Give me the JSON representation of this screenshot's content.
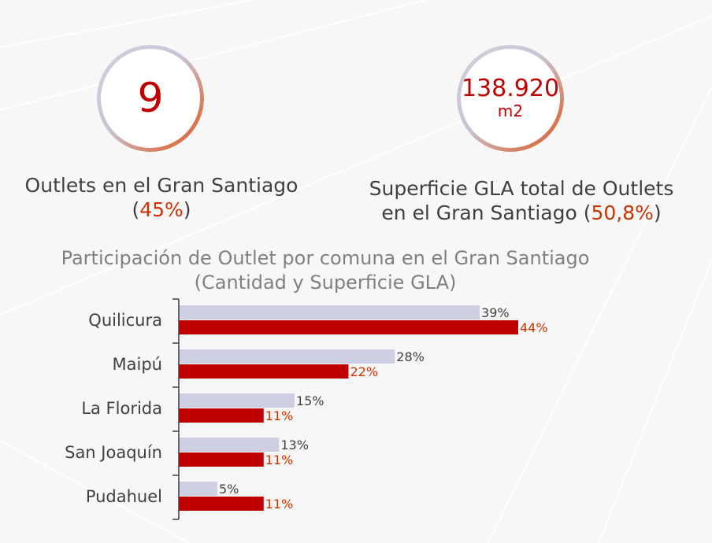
{
  "kpis": [
    {
      "value": "9",
      "caption_line1": "Outlets en el Gran Santiago",
      "caption_pre": "(",
      "caption_pct": "45%",
      "caption_post": ")"
    },
    {
      "value": "138.920",
      "unit": "m2",
      "caption_line1": "Superficie GLA total de Outlets",
      "caption_pre": "en el Gran Santiago (",
      "caption_pct": "50,8%",
      "caption_post": ")"
    }
  ],
  "colors": {
    "series_cantidad": "#cfcfe3",
    "series_superficie": "#c00000",
    "label_cantidad": "#404040",
    "label_superficie": "#cc3300",
    "accent": "#c00000"
  },
  "chart_data": {
    "type": "bar",
    "orientation": "horizontal",
    "title": "Participación de Outlet por comuna en el Gran Santiago",
    "subtitle": "(Cantidad y Superficie GLA)",
    "categories": [
      "Quilicura",
      "Maipú",
      "La Florida",
      "San Joaquín",
      "Pudahuel"
    ],
    "series": [
      {
        "values": [
          39,
          28,
          15,
          13,
          5
        ],
        "labels": [
          "39%",
          "28%",
          "15%",
          "13%",
          "5%"
        ]
      },
      {
        "values": [
          44,
          22,
          11,
          11,
          11
        ],
        "labels": [
          "44%",
          "22%",
          "11%",
          "11%",
          "11%"
        ]
      }
    ],
    "xlim": [
      0,
      50
    ],
    "grid": false,
    "legend": "none"
  }
}
